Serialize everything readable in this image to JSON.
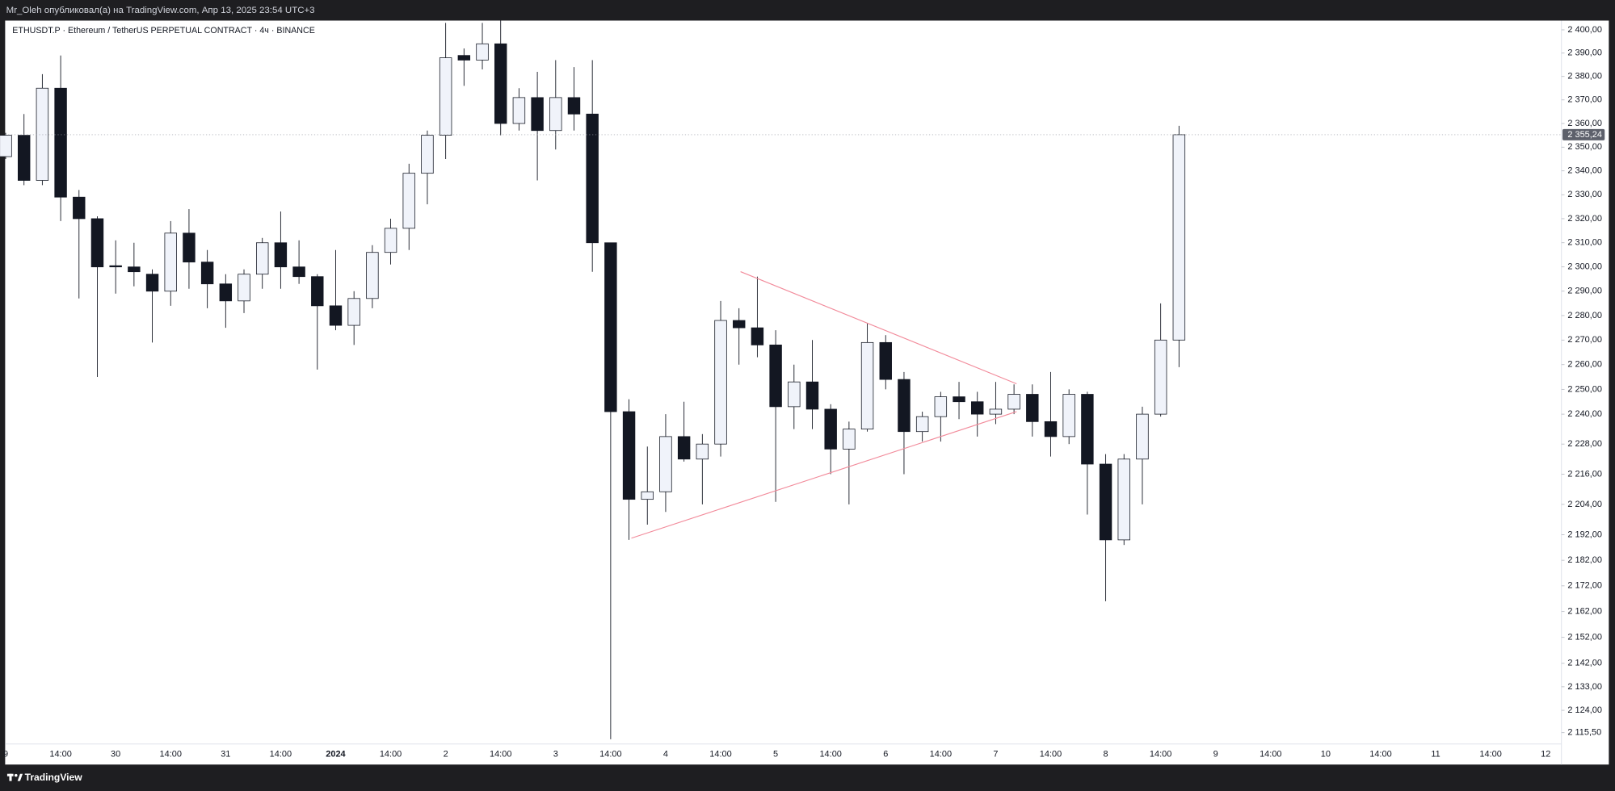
{
  "header": {
    "text": "Mr_Oleh опубликовал(а) на TradingView.com, Апр 13, 2025 23:54 UTC+3"
  },
  "footer": {
    "brand": "TradingView"
  },
  "chart_data": {
    "type": "candlestick",
    "title": "ETHUSDT.P · Ethereum / TetherUS PERPETUAL CONTRACT · 4ч · BINANCE",
    "log": true,
    "up_color": "#f0f3fa",
    "down_color": "#131722",
    "outline_color": "#131722",
    "categories": [
      "9",
      null,
      null,
      "14:00",
      null,
      null,
      "30",
      null,
      null,
      "14:00",
      null,
      null,
      "31",
      null,
      null,
      "14:00",
      null,
      null,
      "2024",
      null,
      null,
      "14:00",
      null,
      null,
      "2",
      null,
      null,
      "14:00",
      null,
      null,
      "3",
      null,
      null,
      "14:00",
      null,
      null,
      "4",
      null,
      null,
      "14:00",
      null,
      null,
      "5",
      null,
      null,
      "14:00",
      null,
      null,
      "6",
      null,
      null,
      "14:00",
      null,
      null,
      "7",
      null,
      null,
      "14:00",
      null,
      null,
      "8",
      null,
      null,
      "14:00",
      null,
      null,
      "9",
      null,
      null,
      "14:00",
      null,
      null,
      "10",
      null,
      null,
      "14:00",
      null,
      null,
      "11",
      null,
      null,
      "14:00",
      null,
      null,
      "12"
    ],
    "open": [
      2346,
      2355,
      2336,
      2375,
      2329,
      2320,
      2300.5,
      2300,
      2297,
      2290,
      2314,
      2302,
      2293,
      2286,
      2297,
      2310,
      2300,
      2296,
      2284,
      2276,
      2287,
      2306,
      2316,
      2339,
      2355,
      2389,
      2387,
      2394,
      2360,
      2371,
      2357,
      2371,
      2364,
      2310,
      2241,
      2206,
      2209,
      2231,
      2222,
      2228,
      2278,
      2275,
      2268,
      2243,
      2253,
      2242,
      2226,
      2234,
      2269,
      2254,
      2233,
      2239,
      2247,
      2245,
      2240,
      2242,
      2248,
      2237,
      2231,
      2248,
      2220,
      2190,
      2222,
      2240,
      2270,
      null,
      null,
      null,
      null,
      null,
      null,
      null,
      null,
      null,
      null,
      null,
      null,
      null,
      null,
      null,
      null,
      null,
      null,
      null,
      null
    ],
    "high": [
      2356,
      2364,
      2381,
      2389,
      2332,
      2321,
      2311,
      2310,
      2299,
      2319,
      2324,
      2307,
      2297,
      2299,
      2312,
      2323,
      2311,
      2297,
      2307,
      2290,
      2309,
      2320,
      2343,
      2357,
      2403,
      2392,
      2403,
      2404,
      2375,
      2382,
      2387,
      2384,
      2387,
      2310,
      2246,
      2227,
      2240,
      2245,
      2232,
      2286,
      2283,
      2296,
      2274,
      2260,
      2270,
      2244,
      2237,
      2277,
      2272,
      2257,
      2241,
      2249,
      2253,
      2249,
      2253,
      2252,
      2252,
      2257,
      2250,
      2249,
      2224,
      2224,
      2243,
      2285,
      2359,
      null,
      null,
      null,
      null,
      null,
      null,
      null,
      null,
      null,
      null,
      null,
      null,
      null,
      null,
      null,
      null,
      null,
      null,
      null,
      null
    ],
    "low": [
      2345,
      2334,
      2334,
      2319,
      2287,
      2255,
      2289,
      2292,
      2269,
      2284,
      2291,
      2283,
      2275,
      2281,
      2291,
      2291,
      2293,
      2258,
      2274,
      2268,
      2283,
      2301,
      2307,
      2326,
      2345,
      2376,
      2383,
      2355,
      2357,
      2336,
      2349,
      2357,
      2298,
      2113,
      2190,
      2196,
      2201,
      2221,
      2204,
      2223,
      2260,
      2263,
      2205,
      2234,
      2234,
      2216,
      2204,
      2233,
      2250,
      2216,
      2229,
      2229,
      2238,
      2231,
      2236,
      2240,
      2231,
      2223,
      2228,
      2200,
      2166,
      2188,
      2204,
      2239,
      2259,
      null,
      null,
      null,
      null,
      null,
      null,
      null,
      null,
      null,
      null,
      null,
      null,
      null,
      null,
      null,
      null,
      null,
      null,
      null,
      null
    ],
    "close": [
      2355,
      2336,
      2375,
      2329,
      2320,
      2300,
      2300,
      2298,
      2290,
      2314,
      2302,
      2293,
      2286,
      2297,
      2310,
      2300,
      2296,
      2284,
      2276,
      2287,
      2306,
      2316,
      2339,
      2355,
      2388,
      2387,
      2394,
      2360,
      2371,
      2357,
      2371,
      2364,
      2310,
      2241,
      2206,
      2209,
      2231,
      2222,
      2228,
      2278,
      2275,
      2268,
      2243,
      2253,
      2242,
      2226,
      2234,
      2269,
      2254,
      2233,
      2239,
      2247,
      2245,
      2240,
      2242,
      2248,
      2237,
      2231,
      2248,
      2220,
      2190,
      2222,
      2240,
      2270,
      2355.24,
      null,
      null,
      null,
      null,
      null,
      null,
      null,
      null,
      null,
      null,
      null,
      null,
      null,
      null,
      null,
      null,
      null,
      null,
      null,
      null
    ],
    "last_price": {
      "value": 2355.24,
      "label": "2 355,24"
    },
    "ylim": [
      2111.6,
      2404
    ],
    "yticks": [
      {
        "value": 2400,
        "label": "2 400,00"
      },
      {
        "value": 2390,
        "label": "2 390,00"
      },
      {
        "value": 2380,
        "label": "2 380,00"
      },
      {
        "value": 2370,
        "label": "2 370,00"
      },
      {
        "value": 2360,
        "label": "2 360,00"
      },
      {
        "value": 2350,
        "label": "2 350,00"
      },
      {
        "value": 2340,
        "label": "2 340,00"
      },
      {
        "value": 2330,
        "label": "2 330,00"
      },
      {
        "value": 2320,
        "label": "2 320,00"
      },
      {
        "value": 2310,
        "label": "2 310,00"
      },
      {
        "value": 2300,
        "label": "2 300,00"
      },
      {
        "value": 2290,
        "label": "2 290,00"
      },
      {
        "value": 2280,
        "label": "2 280,00"
      },
      {
        "value": 2270,
        "label": "2 270,00"
      },
      {
        "value": 2260,
        "label": "2 260,00"
      },
      {
        "value": 2250,
        "label": "2 250,00"
      },
      {
        "value": 2240,
        "label": "2 240,00"
      },
      {
        "value": 2228,
        "label": "2 228,00"
      },
      {
        "value": 2216,
        "label": "2 216,00"
      },
      {
        "value": 2204,
        "label": "2 204,00"
      },
      {
        "value": 2192,
        "label": "2 192,00"
      },
      {
        "value": 2182,
        "label": "2 182,00"
      },
      {
        "value": 2172,
        "label": "2 172,00"
      },
      {
        "value": 2162,
        "label": "2 162,00"
      },
      {
        "value": 2152,
        "label": "2 152,00"
      },
      {
        "value": 2142,
        "label": "2 142,00"
      },
      {
        "value": 2133,
        "label": "2 133,00"
      },
      {
        "value": 2124,
        "label": "2 124,00"
      },
      {
        "value": 2115.5,
        "label": "2 115,50"
      }
    ],
    "grid": false
  }
}
